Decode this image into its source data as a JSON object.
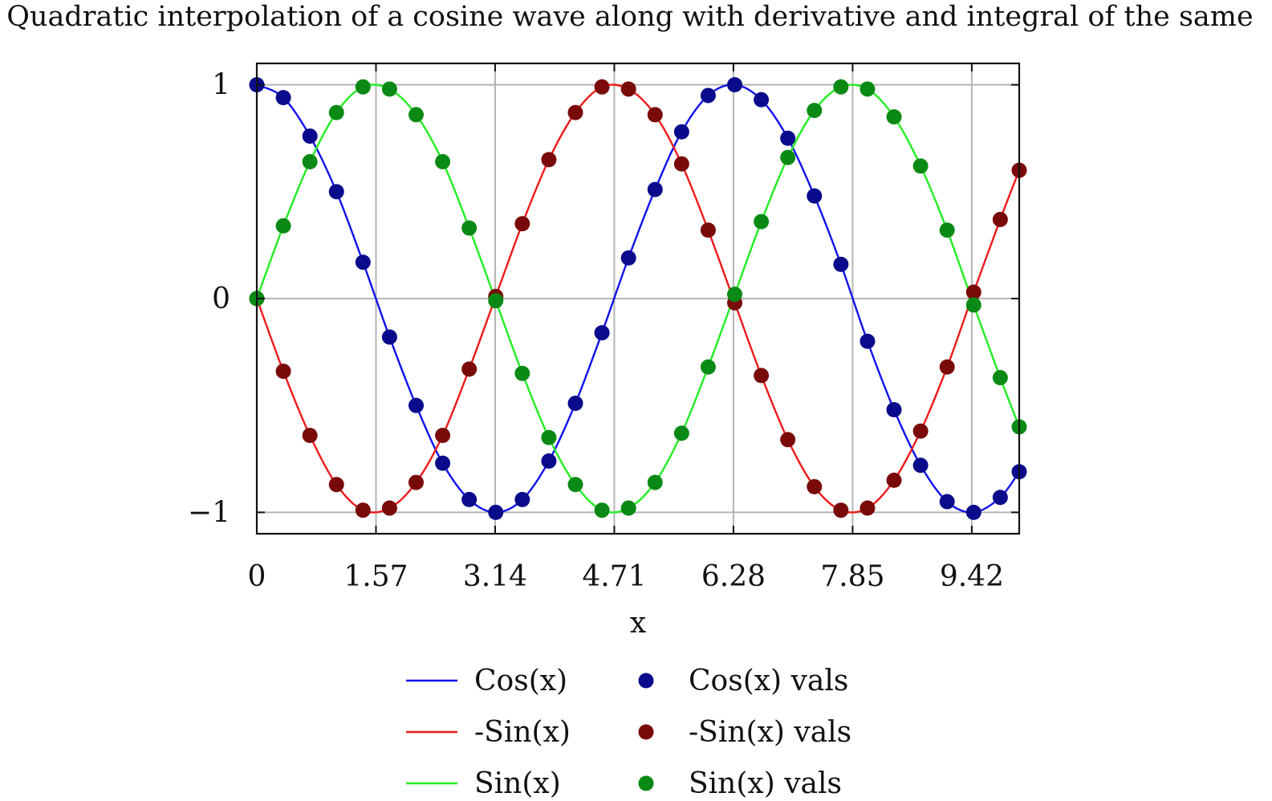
{
  "chart_data": {
    "type": "line",
    "title": "Quadratic interpolation of a cosine wave along with derivative and integral of the same",
    "xlabel": "x",
    "ylabel": "",
    "xlim": [
      0,
      10.05
    ],
    "ylim": [
      -1.1,
      1.1
    ],
    "grid": true,
    "legend_position": "bottom",
    "x_ticks": [
      0,
      1.5708,
      3.1416,
      4.7124,
      6.2832,
      7.854,
      9.4248
    ],
    "x_tick_labels": [
      "0",
      "1.57",
      "3.14",
      "4.71",
      "6.28",
      "7.85",
      "9.42"
    ],
    "y_ticks": [
      -1,
      0,
      1
    ],
    "y_tick_labels": [
      "−1",
      "0",
      "1"
    ],
    "x_samples": [
      0,
      0.35,
      0.7,
      1.05,
      1.4,
      1.75,
      2.1,
      2.45,
      2.8,
      3.15,
      3.5,
      3.85,
      4.2,
      4.55,
      4.9,
      5.25,
      5.6,
      5.95,
      6.3,
      6.65,
      7.0,
      7.35,
      7.7,
      8.05,
      8.4,
      8.75,
      9.1,
      9.45,
      9.8,
      10.05
    ],
    "series": [
      {
        "name": "Cos(x)",
        "points_name": "Cos(x) vals",
        "line_color": "#1010ee",
        "point_color": "#0a0a8c",
        "values": [
          1.0,
          0.94,
          0.76,
          0.5,
          0.17,
          -0.18,
          -0.5,
          -0.77,
          -0.94,
          -1.0,
          -0.94,
          -0.76,
          -0.49,
          -0.16,
          0.19,
          0.51,
          0.78,
          0.95,
          1.0,
          0.93,
          0.75,
          0.48,
          0.16,
          -0.2,
          -0.52,
          -0.78,
          -0.95,
          -1.0,
          -0.93,
          -0.81
        ]
      },
      {
        "name": "-Sin(x)",
        "points_name": "-Sin(x) vals",
        "line_color": "#ee1a1a",
        "point_color": "#7a0a0a",
        "values": [
          0.0,
          -0.34,
          -0.64,
          -0.87,
          -0.99,
          -0.98,
          -0.86,
          -0.64,
          -0.33,
          0.01,
          0.35,
          0.65,
          0.87,
          0.99,
          0.98,
          0.86,
          0.63,
          0.32,
          -0.02,
          -0.36,
          -0.66,
          -0.88,
          -0.99,
          -0.98,
          -0.85,
          -0.62,
          -0.32,
          0.03,
          0.37,
          0.6
        ]
      },
      {
        "name": "Sin(x)",
        "points_name": "Sin(x) vals",
        "line_color": "#22ee22",
        "point_color": "#0a8a14",
        "values": [
          0.0,
          0.34,
          0.64,
          0.87,
          0.99,
          0.98,
          0.86,
          0.64,
          0.33,
          -0.01,
          -0.35,
          -0.65,
          -0.87,
          -0.99,
          -0.98,
          -0.86,
          -0.63,
          -0.32,
          0.02,
          0.36,
          0.66,
          0.88,
          0.99,
          0.98,
          0.85,
          0.62,
          0.32,
          -0.03,
          -0.37,
          -0.6
        ]
      }
    ]
  }
}
